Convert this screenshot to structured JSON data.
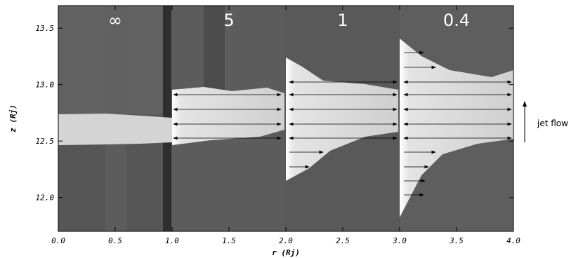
{
  "chart_data": {
    "type": "image",
    "xlabel": "r (Rj)",
    "ylabel": "z (Rj)",
    "xlim": [
      0,
      4
    ],
    "ylim": [
      11.7,
      13.7
    ],
    "xticks": [
      {
        "value": 0,
        "label": "0.0"
      },
      0.5,
      {
        "value": 1,
        "label": "1.0"
      },
      1.5,
      {
        "value": 2,
        "label": "2.0"
      },
      2.5,
      {
        "value": 3,
        "label": "3.0"
      },
      3.5,
      {
        "value": 4,
        "label": "4.0"
      }
    ],
    "yticks": [
      {
        "value": 12,
        "label": "12.0"
      },
      12.5,
      {
        "value": 13,
        "label": "13.0"
      },
      13.5
    ],
    "panel_labels": [
      "∞",
      "5",
      "1",
      "0.4"
    ],
    "annotation": "jet flow"
  }
}
